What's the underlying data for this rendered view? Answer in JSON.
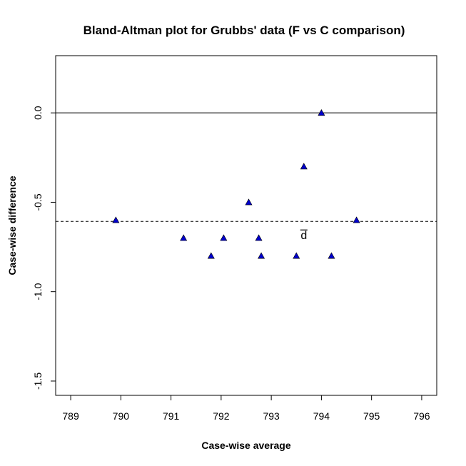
{
  "chart_data": {
    "type": "scatter",
    "title": "Bland-Altman plot for Grubbs' data (F vs C comparison)",
    "xlabel": "Case-wise average",
    "ylabel": "Case-wise difference",
    "xlim": [
      788.7,
      796.3
    ],
    "ylim": [
      -1.58,
      0.32
    ],
    "x_ticks": [
      789,
      790,
      791,
      792,
      793,
      794,
      795,
      796
    ],
    "y_ticks": [
      0.0,
      -0.5,
      -1.0,
      -1.5
    ],
    "x_tick_labels": [
      "789",
      "790",
      "791",
      "792",
      "793",
      "794",
      "795",
      "796"
    ],
    "y_tick_labels": [
      "0.0",
      "-0.5",
      "-1.0",
      "-1.5"
    ],
    "grid": false,
    "marker": "filled-triangle",
    "marker_color": "#0000cc",
    "points": [
      {
        "x": 789.9,
        "y": -0.6
      },
      {
        "x": 791.25,
        "y": -0.7
      },
      {
        "x": 791.8,
        "y": -0.8
      },
      {
        "x": 792.05,
        "y": -0.7
      },
      {
        "x": 792.55,
        "y": -0.5
      },
      {
        "x": 792.75,
        "y": -0.7
      },
      {
        "x": 792.8,
        "y": -0.8
      },
      {
        "x": 793.5,
        "y": -0.8
      },
      {
        "x": 793.65,
        "y": -0.3
      },
      {
        "x": 794.0,
        "y": 0.0
      },
      {
        "x": 794.2,
        "y": -0.8
      },
      {
        "x": 794.7,
        "y": -0.6
      }
    ],
    "reference_lines": [
      {
        "y": 0.0,
        "style": "solid"
      },
      {
        "y": -0.607,
        "style": "dashed",
        "label": "d"
      }
    ]
  }
}
